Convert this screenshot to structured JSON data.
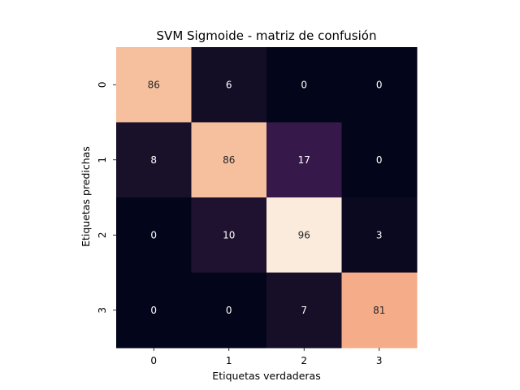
{
  "chart_data": {
    "type": "heatmap",
    "title": "SVM Sigmoide - matriz de confusión",
    "xlabel": "Etiquetas verdaderas",
    "ylabel": "Etiquetas predichas",
    "x_categories": [
      "0",
      "1",
      "2",
      "3"
    ],
    "y_categories": [
      "0",
      "1",
      "2",
      "3"
    ],
    "values": [
      [
        86,
        6,
        0,
        0
      ],
      [
        8,
        86,
        17,
        0
      ],
      [
        0,
        10,
        96,
        3
      ],
      [
        0,
        0,
        7,
        81
      ]
    ],
    "colorscale": "rocket",
    "colorbar": false,
    "grid": false
  }
}
